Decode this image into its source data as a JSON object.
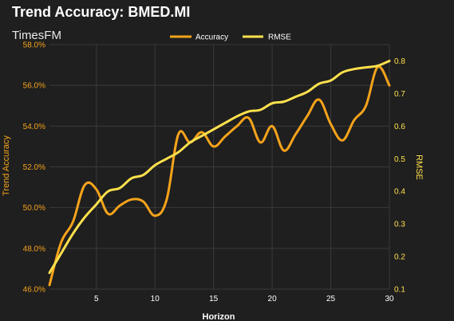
{
  "chart_data": {
    "type": "line",
    "title": "Trend Accuracy: BMED.MI",
    "subtitle": "TimesFM",
    "xlabel": "Horizon",
    "ylabel_left": "Trend Accuracy",
    "ylabel_right": "RMSE",
    "xlim": [
      1,
      30
    ],
    "ylim_left": [
      46.0,
      58.0
    ],
    "ylim_right": [
      0.1,
      0.85
    ],
    "x_ticks": [
      5,
      10,
      15,
      20,
      25,
      30
    ],
    "y_left_ticks": [
      "46.0%",
      "48.0%",
      "50.0%",
      "52.0%",
      "54.0%",
      "56.0%",
      "58.0%"
    ],
    "y_left_tick_values": [
      46,
      48,
      50,
      52,
      54,
      56,
      58
    ],
    "y_right_ticks": [
      "0.1",
      "0.2",
      "0.3",
      "0.4",
      "0.5",
      "0.6",
      "0.7",
      "0.8"
    ],
    "y_right_tick_values": [
      0.1,
      0.2,
      0.3,
      0.4,
      0.5,
      0.6,
      0.7,
      0.8
    ],
    "grid": true,
    "legend_position": "top-center",
    "x": [
      1,
      2,
      3,
      4,
      5,
      6,
      7,
      8,
      9,
      10,
      11,
      12,
      13,
      14,
      15,
      16,
      17,
      18,
      19,
      20,
      21,
      22,
      23,
      24,
      25,
      26,
      27,
      28,
      29,
      30
    ],
    "series": [
      {
        "name": "Accuracy",
        "axis": "left",
        "color": "#f5a31b",
        "values": [
          46.2,
          48.3,
          49.3,
          51.1,
          50.9,
          49.7,
          50.1,
          50.4,
          50.3,
          49.6,
          50.4,
          53.6,
          53.2,
          53.7,
          53.0,
          53.5,
          54.0,
          54.4,
          53.2,
          54.0,
          52.8,
          53.6,
          54.5,
          55.3,
          54.1,
          53.3,
          54.3,
          55.0,
          56.9,
          56.0
        ]
      },
      {
        "name": "RMSE",
        "axis": "right",
        "color": "#ffe14d",
        "values": [
          0.15,
          0.21,
          0.27,
          0.32,
          0.36,
          0.4,
          0.41,
          0.44,
          0.45,
          0.48,
          0.5,
          0.52,
          0.55,
          0.57,
          0.59,
          0.61,
          0.63,
          0.645,
          0.65,
          0.67,
          0.675,
          0.69,
          0.705,
          0.73,
          0.74,
          0.765,
          0.775,
          0.78,
          0.785,
          0.8
        ]
      }
    ]
  }
}
